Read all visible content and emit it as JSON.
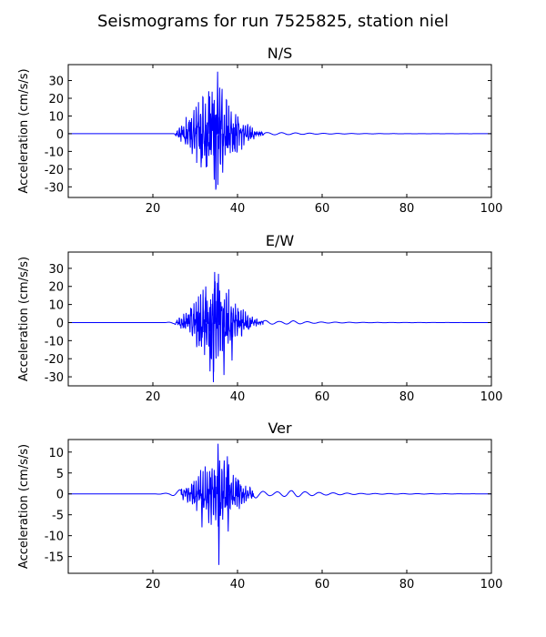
{
  "figure": {
    "title": "Seismograms for run 7525825, station niel"
  },
  "chart_data": [
    {
      "type": "line",
      "title": "N/S",
      "xlabel": "",
      "ylabel": "Acceleration (cm/s/s)",
      "xlim": [
        0,
        100
      ],
      "ylim": [
        -36,
        39
      ],
      "xticks": [
        20,
        40,
        60,
        80,
        100
      ],
      "yticks": [
        -30,
        -20,
        -10,
        0,
        10,
        20,
        30
      ],
      "grid": false,
      "series": [
        {
          "color": "#0000ff",
          "envelope": [
            [
              0,
              0
            ],
            [
              25,
              0
            ],
            [
              26.5,
              4
            ],
            [
              28,
              10
            ],
            [
              30,
              18
            ],
            [
              31.5,
              20
            ],
            [
              33,
              24
            ],
            [
              35.3,
              35
            ],
            [
              37,
              20
            ],
            [
              39,
              15
            ],
            [
              41,
              9
            ],
            [
              43,
              4
            ],
            [
              45,
              2
            ],
            [
              47,
              0.6
            ],
            [
              50,
              0.6
            ],
            [
              55,
              0.4
            ],
            [
              60,
              0.2
            ],
            [
              70,
              0.1
            ],
            [
              80,
              0.05
            ],
            [
              100,
              0
            ]
          ],
          "peaks": [
            [
              35.3,
              35
            ],
            [
              34.5,
              -26
            ],
            [
              35.8,
              26
            ],
            [
              36.5,
              -22
            ],
            [
              31.4,
              -19
            ],
            [
              32.6,
              -19
            ],
            [
              33.2,
              24
            ]
          ]
        }
      ]
    },
    {
      "type": "line",
      "title": "E/W",
      "xlabel": "",
      "ylabel": "Acceleration (cm/s/s)",
      "xlim": [
        0,
        100
      ],
      "ylim": [
        -35,
        39
      ],
      "xticks": [
        20,
        40,
        60,
        80,
        100
      ],
      "yticks": [
        -30,
        -20,
        -10,
        0,
        10,
        20,
        30
      ],
      "grid": false,
      "series": [
        {
          "color": "#0000ff",
          "envelope": [
            [
              0,
              0
            ],
            [
              23,
              0
            ],
            [
              25,
              0.6
            ],
            [
              26.5,
              3
            ],
            [
              28,
              8
            ],
            [
              30,
              14
            ],
            [
              32,
              20
            ],
            [
              34,
              28
            ],
            [
              35.5,
              27
            ],
            [
              37,
              22
            ],
            [
              38.8,
              15
            ],
            [
              40,
              10
            ],
            [
              42,
              6
            ],
            [
              44,
              3
            ],
            [
              46,
              1.2
            ],
            [
              50,
              0.6
            ],
            [
              53,
              1
            ],
            [
              56,
              0.5
            ],
            [
              60,
              0.3
            ],
            [
              65,
              0.2
            ],
            [
              70,
              0.1
            ],
            [
              100,
              0
            ]
          ],
          "peaks": [
            [
              34.3,
              -33
            ],
            [
              34.6,
              28
            ],
            [
              35.5,
              27
            ],
            [
              33.5,
              -27
            ],
            [
              36.8,
              -29
            ],
            [
              32.5,
              20
            ],
            [
              38.7,
              -21
            ]
          ]
        }
      ]
    },
    {
      "type": "line",
      "title": "Ver",
      "xlabel": "",
      "ylabel": "Acceleration (cm/s/s)",
      "xlim": [
        0,
        100
      ],
      "ylim": [
        -19,
        13
      ],
      "xticks": [
        20,
        40,
        60,
        80,
        100
      ],
      "yticks": [
        -15,
        -10,
        -5,
        0,
        5,
        10
      ],
      "grid": false,
      "series": [
        {
          "color": "#0000ff",
          "envelope": [
            [
              0,
              0
            ],
            [
              20,
              0
            ],
            [
              24,
              0.2
            ],
            [
              26,
              0.8
            ],
            [
              28,
              2
            ],
            [
              30,
              4
            ],
            [
              31.5,
              6
            ],
            [
              33,
              7
            ],
            [
              35,
              8
            ],
            [
              37,
              8
            ],
            [
              39,
              6
            ],
            [
              41,
              3
            ],
            [
              43,
              1.5
            ],
            [
              45,
              0.7
            ],
            [
              48,
              0.4
            ],
            [
              51,
              0.6
            ],
            [
              53,
              0.8
            ],
            [
              56,
              0.5
            ],
            [
              60,
              0.3
            ],
            [
              65,
              0.2
            ],
            [
              70,
              0.1
            ],
            [
              100,
              0
            ]
          ],
          "peaks": [
            [
              35.4,
              12
            ],
            [
              35.6,
              -17
            ],
            [
              37.6,
              9
            ],
            [
              37.8,
              -9
            ],
            [
              31.6,
              -8
            ],
            [
              33.2,
              -7
            ]
          ]
        }
      ]
    }
  ]
}
